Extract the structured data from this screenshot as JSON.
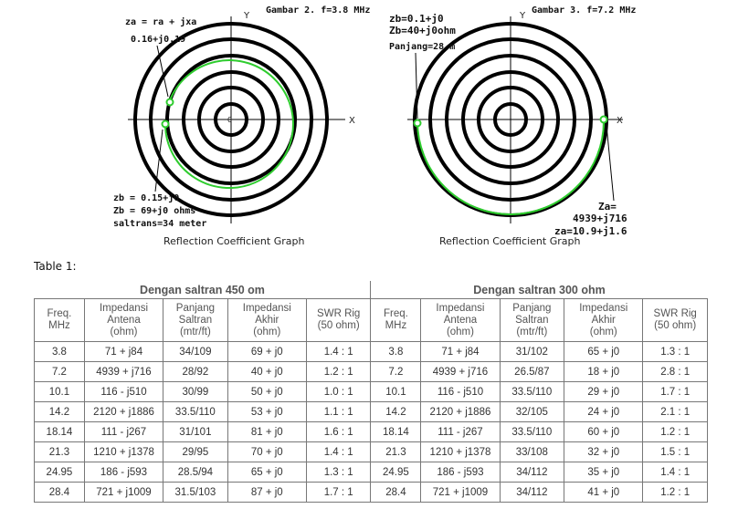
{
  "figures": [
    {
      "title": "Gambar 2. f=3.8 MHz",
      "caption": "Reflection Coefficient Graph",
      "axis_x": "X",
      "axis_y": "Y",
      "origin": "0",
      "labels": [
        "za = ra + jxa",
        "0.16+j0.19",
        "zb = 0.15+j0",
        "Zb = 69+j0 ohms",
        "saltrans=34 meter"
      ]
    },
    {
      "title": "Gambar 3. f=7.2 MHz",
      "caption": "Reflection Coefficient Graph",
      "axis_x": "X",
      "axis_y": "Y",
      "labels": [
        "zb=0.1+j0",
        "Zb=40+j0ohm",
        "Panjang=28 m",
        "Za=",
        "4939+j716",
        "za=10.9+j1.6"
      ]
    }
  ],
  "table": {
    "title": "Table 1:",
    "groups": [
      "Dengan saltran 450 om",
      "Dengan saltran 300 ohm"
    ],
    "columns": [
      [
        "Freq.",
        "MHz"
      ],
      [
        "Impedansi",
        "Antena",
        "(ohm)"
      ],
      [
        "Panjang",
        "Saltran",
        "(mtr/ft)"
      ],
      [
        "Impedansi",
        "Akhir",
        "(ohm)"
      ],
      [
        "SWR Rig",
        "(50 ohm)"
      ],
      [
        "Freq.",
        "MHz"
      ],
      [
        "Impedansi",
        "Antena",
        "(ohm)"
      ],
      [
        "Panjang",
        "Saltran",
        "(mtr/ft)"
      ],
      [
        "Impedansi",
        "Akhir",
        "(ohm)"
      ],
      [
        "SWR Rig",
        "(50 ohm)"
      ]
    ],
    "rows": [
      [
        "3.8",
        "71 + j84",
        "34/109",
        "69 + j0",
        "1.4 : 1",
        "3.8",
        "71 + j84",
        "31/102",
        "65 + j0",
        "1.3 : 1"
      ],
      [
        "7.2",
        "4939 + j716",
        "28/92",
        "40 + j0",
        "1.2 : 1",
        "7.2",
        "4939 + j716",
        "26.5/87",
        "18 + j0",
        "2.8 : 1"
      ],
      [
        "10.1",
        "116 - j510",
        "30/99",
        "50 + j0",
        "1.0 : 1",
        "10.1",
        "116 - j510",
        "33.5/110",
        "29 + j0",
        "1.7 : 1"
      ],
      [
        "14.2",
        "2120 + j1886",
        "33.5/110",
        "53 + j0",
        "1.1 : 1",
        "14.2",
        "2120 + j1886",
        "32/105",
        "24 + j0",
        "2.1 : 1"
      ],
      [
        "18.14",
        "111 - j267",
        "31/101",
        "81 + j0",
        "1.6 : 1",
        "18.14",
        "111 - j267",
        "33.5/110",
        "60 + j0",
        "1.2 : 1"
      ],
      [
        "21.3",
        "1210 + j1378",
        "29/95",
        "70 + j0",
        "1.4 : 1",
        "21.3",
        "1210 + j1378",
        "33/108",
        "32 + j0",
        "1.5 : 1"
      ],
      [
        "24.95",
        "186 - j593",
        "28.5/94",
        "65 + j0",
        "1.3 : 1",
        "24.95",
        "186 - j593",
        "34/112",
        "35 + j0",
        "1.4 : 1"
      ],
      [
        "28.4",
        "721 + j1009",
        "31.5/103",
        "87 + j0",
        "1.7 : 1",
        "28.4",
        "721 + j1009",
        "34/112",
        "41 + j0",
        "1.2 : 1"
      ]
    ]
  }
}
